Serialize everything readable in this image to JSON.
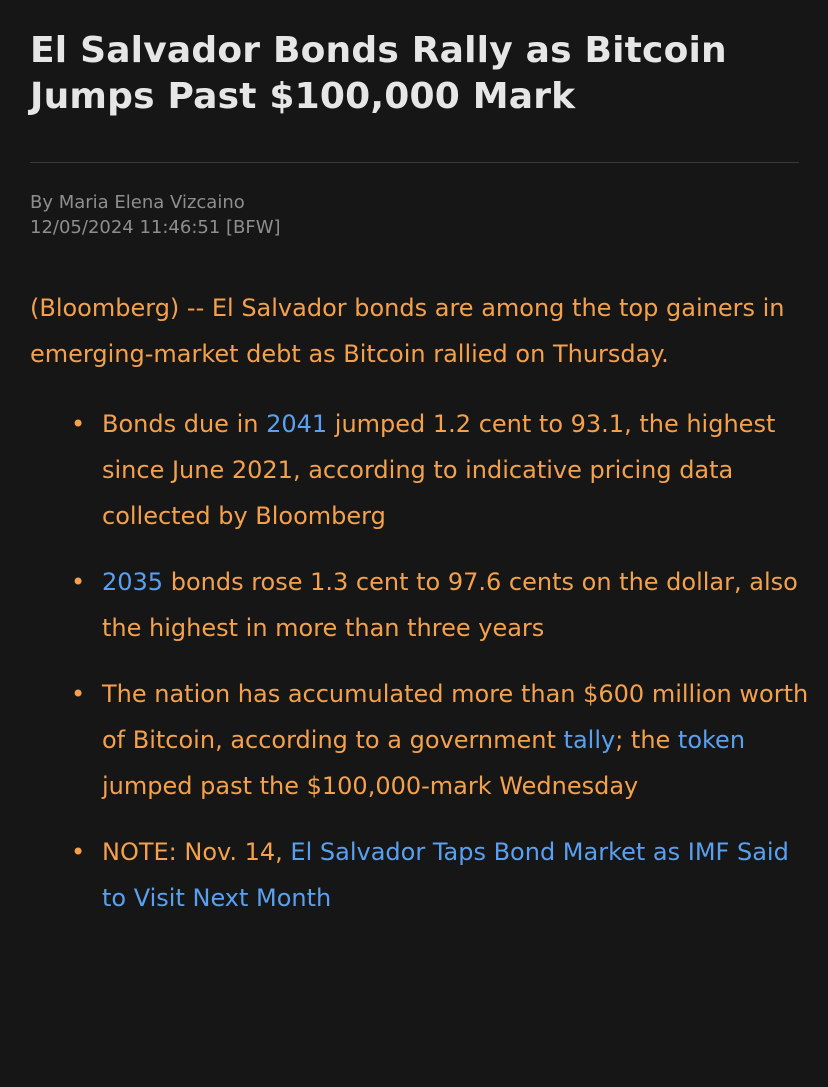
{
  "article": {
    "headline": "El Salvador Bonds Rally as Bitcoin Jumps Past $100,000 Mark",
    "byline": "By Maria Elena Vizcaino",
    "timestamp": "12/05/2024 11:46:51 [BFW]",
    "lead": "(Bloomberg) -- El Salvador bonds are among the top gainers in emerging-market debt as Bitcoin rallied on Thursday.",
    "bullet_symbol": "•",
    "bullets": [
      {
        "link": "2041",
        "text_a": "Bonds due in ",
        "text_b": " jumped 1.2 cent to 93.1, the highest since June 2021, according to indicative pricing data collected by Bloomberg"
      },
      {
        "link": "2035",
        "text_b": " bonds rose 1.3 cent to 97.6 cents on the dollar, also the highest in more than three years"
      },
      {
        "text_a": "The nation has accumulated more than $600 million worth of Bitcoin, according to a government ",
        "link_1": "tally",
        "text_b": "; the ",
        "link_2": "token",
        "text_c": " jumped past the $100,000-mark Wednesday"
      },
      {
        "text_a": "NOTE: Nov. 14, ",
        "link": "El Salvador Taps Bond Market as IMF Said to Visit Next Month"
      }
    ]
  },
  "colors": {
    "background": "#161616",
    "headline": "#e6e6e6",
    "meta": "#8e8e8e",
    "body_text": "#f4a14d",
    "link": "#5aa0f0",
    "divider": "#3a3a3a"
  }
}
